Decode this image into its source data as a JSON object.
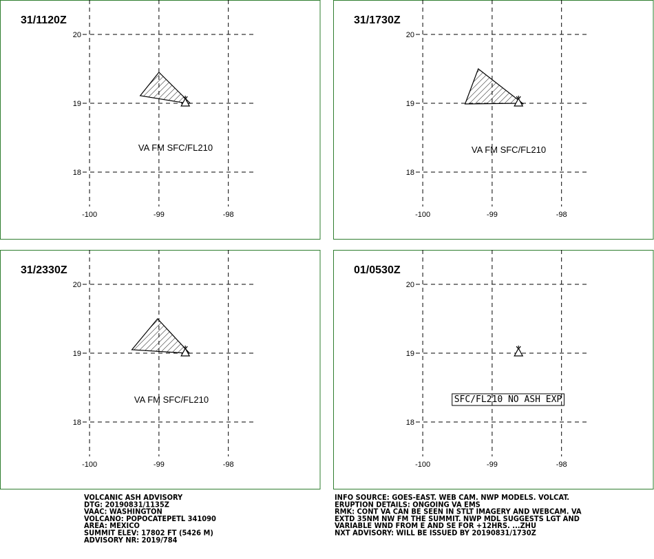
{
  "map": {
    "xlim": [
      -100.1,
      -97.6
    ],
    "ylim": [
      17.5,
      20.5
    ],
    "xticks": [
      -100,
      -99,
      -98
    ],
    "yticks": [
      18,
      19,
      20
    ]
  },
  "volcano": {
    "lon": -98.62,
    "lat": 19.02
  },
  "panels": [
    {
      "title": "31/1120Z",
      "label": "VA FM SFC/FL210",
      "lon": [
        -99.27,
        -99.0,
        -98.55,
        -98.6
      ],
      "lat": [
        19.11,
        19.45,
        19.0,
        19.0
      ]
    },
    {
      "title": "31/1730Z",
      "label": "VA FM SFC/FL210",
      "lon": [
        -99.39,
        -99.2,
        -98.55,
        -98.6
      ],
      "lat": [
        18.99,
        19.5,
        18.99,
        19.0
      ]
    },
    {
      "title": "31/2330Z",
      "label": "VA FM SFC/FL210",
      "lon": [
        -99.39,
        -99.02,
        -98.56,
        -98.6
      ],
      "lat": [
        19.05,
        19.5,
        19.0,
        19.0
      ]
    },
    {
      "title": "01/0530Z",
      "label": "SFC/FL210 NO ASH EXP",
      "lon": [],
      "lat": []
    }
  ],
  "footer": {
    "left": [
      "VOLCANIC ASH ADVISORY",
      "DTG: 20190831/1135Z",
      "VAAC: WASHINGTON",
      "VOLCANO: POPOCATEPETL 341090",
      "AREA: MEXICO",
      "SUMMIT ELEV: 17802 FT (5426 M)",
      "ADVISORY NR: 2019/784"
    ],
    "right": [
      "INFO SOURCE: GOES-EAST. WEB CAM. NWP MODELS. VOLCAT.",
      "ERUPTION DETAILS: ONGOING VA EMS",
      "RMK: CONT VA CAN BE SEEN IN STLT IMAGERY AND WEBCAM. VA",
      "EXTD 35NM NW FM THE SUMMIT. NWP MDL SUGGESTS LGT AND",
      "VARIABLE WND FROM E AND SE FOR +12HRS. ...ZHU",
      "NXT ADVISORY: WILL BE ISSUED BY 20190831/1730Z"
    ]
  }
}
